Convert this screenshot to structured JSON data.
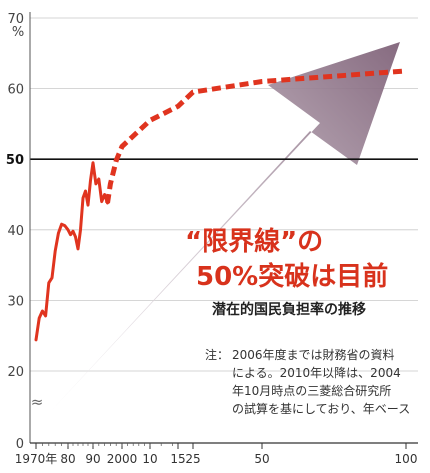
{
  "chart_data": {
    "type": "line",
    "y_unit": "%",
    "ylim": [
      0,
      70
    ],
    "y_ticks": [
      {
        "value": 0,
        "label": "0"
      },
      {
        "value": 20,
        "label": "20"
      },
      {
        "value": 30,
        "label": "30"
      },
      {
        "value": 40,
        "label": "40"
      },
      {
        "value": 50,
        "label": "50"
      },
      {
        "value": 60,
        "label": "60"
      },
      {
        "value": 70,
        "label": "70"
      }
    ],
    "axis_break_symbol": "≈",
    "x_ticks": [
      {
        "label": "1970年",
        "year": 1970
      },
      {
        "label": "80",
        "year": 1980
      },
      {
        "label": "90",
        "year": 1990
      },
      {
        "label": "2000",
        "year": 2000
      },
      {
        "label": "10",
        "year": 2010
      },
      {
        "label": "15",
        "year": 2015
      },
      {
        "label": "25",
        "year": 2025
      },
      {
        "label": "50",
        "year": 2050
      },
      {
        "label": "100",
        "year": 2100
      }
    ],
    "reference_line": {
      "value": 50,
      "label": "50"
    },
    "series": [
      {
        "style": "solid",
        "color": "#e0341f",
        "points": [
          {
            "x": 1970,
            "y": 24.4
          },
          {
            "x": 1971,
            "y": 27.5
          },
          {
            "x": 1972,
            "y": 28.5
          },
          {
            "x": 1973,
            "y": 27.8
          },
          {
            "x": 1974,
            "y": 32.5
          },
          {
            "x": 1975,
            "y": 33.2
          },
          {
            "x": 1976,
            "y": 37.0
          },
          {
            "x": 1977,
            "y": 39.5
          },
          {
            "x": 1978,
            "y": 40.8
          },
          {
            "x": 1979,
            "y": 40.6
          },
          {
            "x": 1980,
            "y": 40.0
          },
          {
            "x": 1981,
            "y": 39.3
          },
          {
            "x": 1982,
            "y": 39.8
          },
          {
            "x": 1983,
            "y": 39.0
          },
          {
            "x": 1984,
            "y": 37.3
          },
          {
            "x": 1985,
            "y": 40.0
          },
          {
            "x": 1986,
            "y": 44.5
          },
          {
            "x": 1987,
            "y": 45.5
          },
          {
            "x": 1988,
            "y": 43.5
          },
          {
            "x": 1989,
            "y": 47.0
          },
          {
            "x": 1990,
            "y": 49.5
          },
          {
            "x": 1991,
            "y": 46.5
          },
          {
            "x": 1992,
            "y": 47.2
          },
          {
            "x": 1993,
            "y": 44.0
          },
          {
            "x": 1994,
            "y": 45.0
          },
          {
            "x": 1995,
            "y": 43.8
          }
        ]
      },
      {
        "style": "dashed",
        "color": "#e0341f",
        "points": [
          {
            "x": 1995,
            "y": 43.8
          },
          {
            "x": 1996,
            "y": 46.5
          },
          {
            "x": 1998,
            "y": 49.8
          },
          {
            "x": 2000,
            "y": 51.8
          },
          {
            "x": 2010,
            "y": 55.5
          },
          {
            "x": 2015,
            "y": 57.5
          },
          {
            "x": 2025,
            "y": 59.5
          },
          {
            "x": 2050,
            "y": 61.0
          },
          {
            "x": 2100,
            "y": 62.5
          }
        ]
      }
    ],
    "arrow_color": "#8a6d82"
  },
  "headline": {
    "line1": "“限界線”の",
    "line2": "50%突破は目前",
    "subtitle": "潜在的国民負担率の推移"
  },
  "note": {
    "prefix": "注：",
    "lines": [
      "2006年度までは財務省の資料",
      "による。2010年以降は、2004",
      "年10月時点の三菱総合研究所",
      "の試算を基にしており、年ベース"
    ]
  }
}
